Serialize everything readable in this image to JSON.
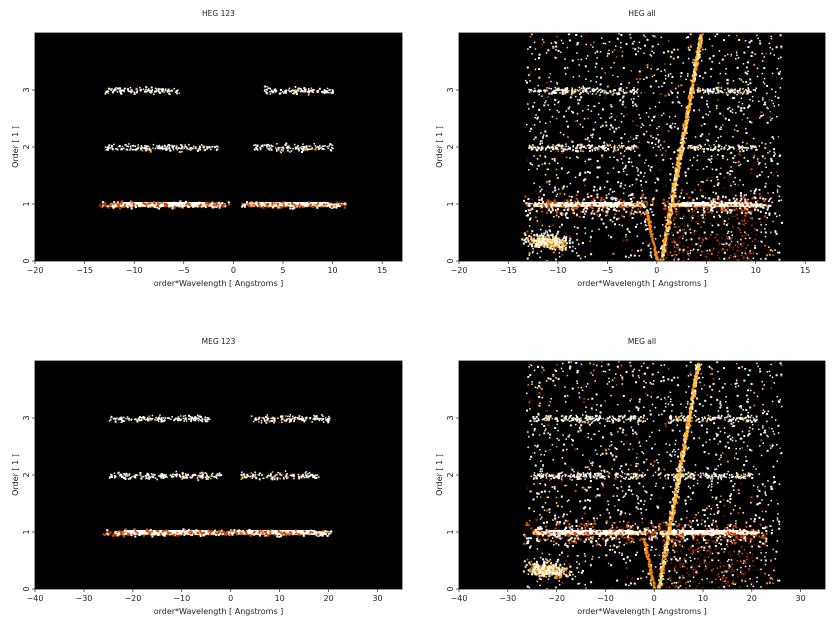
{
  "chart_data": [
    {
      "type": "heatmap",
      "title": "HEG 123",
      "xlabel": "order*Wavelength [ Angstroms ]",
      "ylabel": "Order [ 1 ]",
      "xlim": [
        -20,
        17
      ],
      "ylim": [
        0,
        4
      ],
      "xticks": [
        -20,
        -15,
        -10,
        -5,
        0,
        5,
        10,
        15
      ],
      "yticks": [
        0,
        1,
        2,
        3
      ],
      "grid": false,
      "bands": [
        {
          "order": 1,
          "x_ranges": [
            [
              -12.5,
              -1.5
            ],
            [
              1.5,
              10.5
            ]
          ],
          "intensity": "high"
        },
        {
          "order": 2,
          "x_ranges": [
            [
              -13,
              -1.5
            ],
            [
              2,
              10
            ]
          ],
          "intensity": "low"
        },
        {
          "order": 3,
          "x_ranges": [
            [
              -13,
              -5.5
            ],
            [
              3,
              10
            ]
          ],
          "intensity": "low"
        }
      ],
      "zero_order_streak": false,
      "scattered_background": false
    },
    {
      "type": "heatmap",
      "title": "HEG all",
      "xlabel": "order*Wavelength [ Angstroms ]",
      "ylabel": "Order [ 1 ]",
      "xlim": [
        -20,
        17
      ],
      "ylim": [
        0,
        4
      ],
      "xticks": [
        -20,
        -15,
        -10,
        -5,
        0,
        5,
        10,
        15
      ],
      "yticks": [
        0,
        1,
        2,
        3
      ],
      "grid": false,
      "bands": [
        {
          "order": 1,
          "x_ranges": [
            [
              -12.5,
              -1.5
            ],
            [
              1.5,
              10.5
            ]
          ],
          "intensity": "high"
        },
        {
          "order": 2,
          "x_ranges": [
            [
              -13,
              -2
            ],
            [
              3,
              10
            ]
          ],
          "intensity": "low"
        },
        {
          "order": 3,
          "x_ranges": [
            [
              -13,
              -2
            ],
            [
              4,
              10
            ]
          ],
          "intensity": "low"
        }
      ],
      "zero_order_streak": true,
      "scattered_background": true
    },
    {
      "type": "heatmap",
      "title": "MEG 123",
      "xlabel": "order*Wavelength [ Angstroms ]",
      "ylabel": "Order [ 1 ]",
      "xlim": [
        -40,
        35
      ],
      "ylim": [
        0,
        4
      ],
      "xticks": [
        -40,
        -30,
        -20,
        -10,
        0,
        10,
        20,
        30
      ],
      "yticks": [
        0,
        1,
        2,
        3
      ],
      "grid": false,
      "bands": [
        {
          "order": 1,
          "x_ranges": [
            [
              -24,
              -2
            ],
            [
              1,
              19
            ]
          ],
          "intensity": "high"
        },
        {
          "order": 2,
          "x_ranges": [
            [
              -25,
              -2
            ],
            [
              2,
              18
            ]
          ],
          "intensity": "low"
        },
        {
          "order": 3,
          "x_ranges": [
            [
              -25,
              -4
            ],
            [
              4,
              20
            ]
          ],
          "intensity": "low"
        }
      ],
      "zero_order_streak": false,
      "scattered_background": false
    },
    {
      "type": "heatmap",
      "title": "MEG all",
      "xlabel": "order*Wavelength [ Angstroms ]",
      "ylabel": "Order [ 1 ]",
      "xlim": [
        -40,
        35
      ],
      "ylim": [
        0,
        4
      ],
      "xticks": [
        -40,
        -30,
        -20,
        -10,
        0,
        10,
        20,
        30
      ],
      "yticks": [
        0,
        1,
        2,
        3
      ],
      "grid": false,
      "bands": [
        {
          "order": 1,
          "x_ranges": [
            [
              -25,
              -2
            ],
            [
              1,
              21
            ]
          ],
          "intensity": "high"
        },
        {
          "order": 2,
          "x_ranges": [
            [
              -25,
              -2
            ],
            [
              2,
              20
            ]
          ],
          "intensity": "low"
        },
        {
          "order": 3,
          "x_ranges": [
            [
              -25,
              -2
            ],
            [
              3,
              21
            ]
          ],
          "intensity": "low"
        }
      ],
      "zero_order_streak": true,
      "scattered_background": true
    }
  ],
  "colors": {
    "plot_background": "#000000",
    "figure_background": "#ffffff",
    "colormap": [
      "#3a0000",
      "#8a1a00",
      "#d24a00",
      "#ff8a00",
      "#ffc040",
      "#fff2b0",
      "#ffffff"
    ]
  }
}
